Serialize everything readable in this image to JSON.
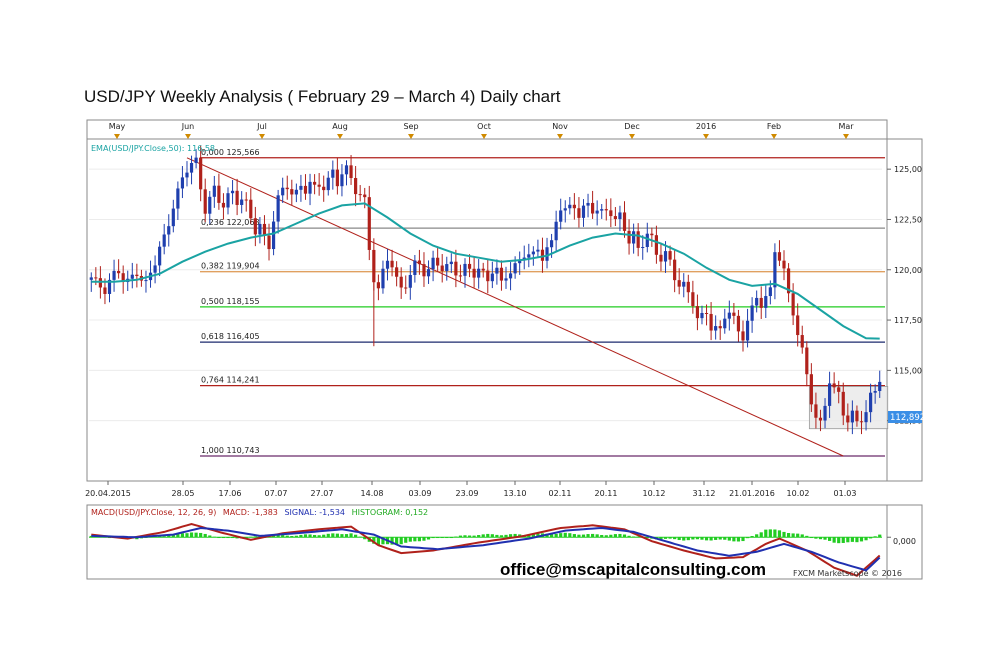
{
  "title": "USD/JPY Weekly Analysis ( February 29 – March 4) Daily chart",
  "email": "office@mscapitalconsulting.com",
  "credit": "FXCM Marketscope © 2016",
  "colors": {
    "bull": "#1f3fae",
    "bear": "#b0211b",
    "ema": "#1aa3a3",
    "macd": "#b0211b",
    "signal": "#2030b0",
    "histogram": "#22cc22",
    "month_marker": "#d08a00"
  },
  "chart_data": [
    {
      "type": "candlestick",
      "ylim": [
        109.6,
        126.4
      ],
      "yticks": [
        "125,00",
        "122,50",
        "120,00",
        "117,50",
        "115,00",
        "112,50"
      ],
      "month_labels": [
        "May",
        "Jun",
        "Jul",
        "Aug",
        "Sep",
        "Oct",
        "Nov",
        "Dec",
        "2016",
        "Feb",
        "Mar"
      ],
      "date_labels": [
        "20.04.2015",
        "28.05",
        "17.06",
        "07.07",
        "27.07",
        "14.08",
        "03.09",
        "23.09",
        "13.10",
        "02.11",
        "20.11",
        "10.12",
        "31.12",
        "21.01.2016",
        "10.02",
        "01.03"
      ],
      "ema_label": "EMA(USD/JPY.Close,50): 116,58",
      "current_price": "112,892",
      "fib_levels": [
        {
          "label": "0,000 125,566",
          "value": 125.566,
          "color": "#b0211b"
        },
        {
          "label": "0,236 122,068",
          "value": 122.068,
          "color": "#888888"
        },
        {
          "label": "0,382 119,904",
          "value": 119.904,
          "color": "#e0a060"
        },
        {
          "label": "0,500 118,155",
          "value": 118.155,
          "color": "#22cc22"
        },
        {
          "label": "0,618 116,405",
          "value": 116.405,
          "color": "#1c2a6e"
        },
        {
          "label": "0,764 114,241",
          "value": 114.241,
          "color": "#b0211b"
        },
        {
          "label": "1,000 110,743",
          "value": 110.743,
          "color": "#6a2a6a"
        }
      ],
      "close_path": [
        [
          0,
          119.5
        ],
        [
          1,
          119.3
        ],
        [
          2,
          119.2
        ],
        [
          3,
          119.1
        ],
        [
          4,
          119.5
        ],
        [
          5,
          119.8
        ],
        [
          6,
          119.9
        ],
        [
          7,
          119.4
        ],
        [
          8,
          119.3
        ],
        [
          9,
          119.7
        ],
        [
          10,
          120.0
        ],
        [
          11,
          119.6
        ],
        [
          12,
          119.3
        ],
        [
          13,
          119.8
        ],
        [
          14,
          120.3
        ],
        [
          15,
          121.0
        ],
        [
          16,
          121.6
        ],
        [
          17,
          122.4
        ],
        [
          18,
          123.3
        ],
        [
          19,
          123.9
        ],
        [
          20,
          124.4
        ],
        [
          21,
          124.9
        ],
        [
          22,
          125.3
        ],
        [
          23,
          125.4
        ],
        [
          24,
          124.1
        ],
        [
          25,
          123.1
        ],
        [
          26,
          123.6
        ],
        [
          27,
          123.9
        ],
        [
          28,
          123.3
        ],
        [
          29,
          123.2
        ],
        [
          30,
          123.7
        ],
        [
          31,
          123.9
        ],
        [
          32,
          123.5
        ],
        [
          33,
          123.6
        ],
        [
          34,
          123.2
        ],
        [
          35,
          122.4
        ],
        [
          36,
          121.9
        ],
        [
          37,
          122.3
        ],
        [
          38,
          121.6
        ],
        [
          39,
          121.2
        ],
        [
          40,
          122.6
        ],
        [
          41,
          123.5
        ],
        [
          42,
          123.8
        ],
        [
          43,
          124.1
        ],
        [
          44,
          123.9
        ],
        [
          45,
          123.9
        ],
        [
          46,
          124.2
        ],
        [
          47,
          124.0
        ],
        [
          48,
          124.3
        ],
        [
          49,
          123.9
        ],
        [
          50,
          124.1
        ],
        [
          51,
          124.2
        ],
        [
          52,
          124.6
        ],
        [
          53,
          124.9
        ],
        [
          54,
          124.3
        ],
        [
          55,
          124.8
        ],
        [
          56,
          124.9
        ],
        [
          57,
          124.4
        ],
        [
          58,
          124.0
        ],
        [
          59,
          123.9
        ],
        [
          60,
          123.5
        ],
        [
          61,
          121.0
        ],
        [
          62,
          119.5
        ],
        [
          63,
          118.9
        ],
        [
          64,
          119.8
        ],
        [
          65,
          120.6
        ],
        [
          66,
          120.4
        ],
        [
          67,
          119.6
        ],
        [
          68,
          119.0
        ],
        [
          69,
          119.2
        ],
        [
          70,
          119.7
        ],
        [
          71,
          120.2
        ],
        [
          72,
          120.3
        ],
        [
          73,
          120.0
        ],
        [
          74,
          120.1
        ],
        [
          75,
          120.4
        ],
        [
          76,
          120.2
        ],
        [
          77,
          120.0
        ],
        [
          78,
          120.1
        ],
        [
          79,
          120.3
        ],
        [
          80,
          120.0
        ],
        [
          81,
          119.9
        ],
        [
          82,
          120.1
        ],
        [
          83,
          119.9
        ],
        [
          84,
          119.7
        ],
        [
          85,
          120.0
        ],
        [
          86,
          119.8
        ],
        [
          87,
          119.6
        ],
        [
          88,
          120.1
        ],
        [
          89,
          120.0
        ],
        [
          90,
          119.2
        ],
        [
          91,
          119.6
        ],
        [
          92,
          119.9
        ],
        [
          93,
          120.2
        ],
        [
          94,
          120.5
        ],
        [
          95,
          120.9
        ],
        [
          96,
          120.8
        ],
        [
          97,
          120.6
        ],
        [
          98,
          120.9
        ],
        [
          99,
          120.6
        ],
        [
          100,
          121.1
        ],
        [
          101,
          121.4
        ],
        [
          102,
          122.6
        ],
        [
          103,
          123.1
        ],
        [
          104,
          122.8
        ],
        [
          105,
          123.0
        ],
        [
          106,
          123.2
        ],
        [
          107,
          122.7
        ],
        [
          108,
          123.1
        ],
        [
          109,
          123.4
        ],
        [
          110,
          123.0
        ],
        [
          111,
          122.8
        ],
        [
          112,
          122.7
        ],
        [
          113,
          123.0
        ],
        [
          114,
          122.9
        ],
        [
          115,
          122.5
        ],
        [
          116,
          122.8
        ],
        [
          117,
          122.1
        ],
        [
          118,
          121.3
        ],
        [
          119,
          121.6
        ],
        [
          120,
          121.0
        ],
        [
          121,
          121.4
        ],
        [
          122,
          121.9
        ],
        [
          123,
          121.6
        ],
        [
          124,
          120.8
        ],
        [
          125,
          120.5
        ],
        [
          126,
          120.7
        ],
        [
          127,
          120.3
        ],
        [
          128,
          119.7
        ],
        [
          129,
          119.4
        ],
        [
          130,
          119.3
        ],
        [
          131,
          118.8
        ],
        [
          132,
          118.3
        ],
        [
          133,
          117.5
        ],
        [
          134,
          117.6
        ],
        [
          135,
          117.9
        ],
        [
          136,
          117.3
        ],
        [
          137,
          117.2
        ],
        [
          138,
          116.9
        ],
        [
          139,
          117.6
        ],
        [
          140,
          117.9
        ],
        [
          141,
          117.5
        ],
        [
          142,
          116.9
        ],
        [
          143,
          116.8
        ],
        [
          144,
          117.6
        ],
        [
          145,
          118.0
        ],
        [
          146,
          118.5
        ],
        [
          147,
          118.2
        ],
        [
          148,
          118.6
        ],
        [
          149,
          119.0
        ],
        [
          150,
          121.1
        ],
        [
          151,
          120.7
        ],
        [
          152,
          119.9
        ],
        [
          153,
          118.6
        ],
        [
          154,
          117.8
        ],
        [
          155,
          116.8
        ],
        [
          156,
          116.0
        ],
        [
          157,
          114.9
        ],
        [
          158,
          113.6
        ],
        [
          159,
          112.6
        ],
        [
          160,
          112.2
        ],
        [
          161,
          113.2
        ],
        [
          162,
          114.5
        ],
        [
          163,
          114.1
        ],
        [
          164,
          113.9
        ],
        [
          165,
          113.0
        ],
        [
          166,
          112.5
        ],
        [
          167,
          112.7
        ],
        [
          168,
          112.3
        ],
        [
          169,
          112.6
        ],
        [
          170,
          113.0
        ],
        [
          171,
          113.8
        ],
        [
          172,
          114.1
        ],
        [
          173,
          114.6
        ]
      ],
      "ema_path": [
        [
          0,
          119.4
        ],
        [
          5,
          119.4
        ],
        [
          10,
          119.5
        ],
        [
          15,
          119.8
        ],
        [
          20,
          120.4
        ],
        [
          25,
          120.9
        ],
        [
          30,
          121.3
        ],
        [
          35,
          121.6
        ],
        [
          40,
          121.8
        ],
        [
          45,
          122.3
        ],
        [
          50,
          122.8
        ],
        [
          55,
          123.2
        ],
        [
          60,
          123.3
        ],
        [
          65,
          122.6
        ],
        [
          70,
          121.8
        ],
        [
          75,
          121.2
        ],
        [
          80,
          120.8
        ],
        [
          85,
          120.6
        ],
        [
          90,
          120.4
        ],
        [
          95,
          120.5
        ],
        [
          100,
          120.7
        ],
        [
          105,
          121.2
        ],
        [
          110,
          121.6
        ],
        [
          115,
          121.8
        ],
        [
          120,
          121.7
        ],
        [
          125,
          121.3
        ],
        [
          130,
          120.8
        ],
        [
          135,
          120.1
        ],
        [
          140,
          119.5
        ],
        [
          145,
          119.2
        ],
        [
          150,
          119.3
        ],
        [
          155,
          118.8
        ],
        [
          160,
          118.0
        ],
        [
          165,
          117.2
        ],
        [
          170,
          116.6
        ],
        [
          173,
          116.58
        ]
      ],
      "swing_line": {
        "from": [
          21,
          125.566
        ],
        "to": [
          165,
          110.743
        ]
      }
    },
    {
      "type": "line",
      "name": "MACD panel",
      "legend_parts": [
        "MACD(USD/JPY.Close, 12, 26, 9)",
        "MACD: -1,383",
        "SIGNAL: -1,534",
        "HISTOGRAM: 0,152"
      ],
      "ylim": [
        -3.0,
        1.3
      ],
      "ytick": "0,000",
      "series": [
        {
          "name": "MACD",
          "values": [
            [
              0,
              0.2
            ],
            [
              8,
              -0.1
            ],
            [
              16,
              0.4
            ],
            [
              22,
              1.0
            ],
            [
              28,
              0.4
            ],
            [
              35,
              -0.2
            ],
            [
              42,
              0.3
            ],
            [
              50,
              0.6
            ],
            [
              57,
              0.8
            ],
            [
              63,
              -0.6
            ],
            [
              68,
              -1.2
            ],
            [
              75,
              -1.0
            ],
            [
              85,
              -0.4
            ],
            [
              95,
              0.1
            ],
            [
              103,
              0.7
            ],
            [
              110,
              0.9
            ],
            [
              117,
              0.6
            ],
            [
              123,
              -0.3
            ],
            [
              130,
              -1.0
            ],
            [
              137,
              -1.6
            ],
            [
              143,
              -1.5
            ],
            [
              148,
              -0.5
            ],
            [
              151,
              -0.1
            ],
            [
              157,
              -1.0
            ],
            [
              163,
              -2.3
            ],
            [
              168,
              -2.9
            ],
            [
              173,
              -1.38
            ]
          ]
        },
        {
          "name": "SIGNAL",
          "values": [
            [
              0,
              0.1
            ],
            [
              10,
              0.0
            ],
            [
              18,
              0.2
            ],
            [
              24,
              0.7
            ],
            [
              30,
              0.5
            ],
            [
              37,
              0.1
            ],
            [
              45,
              0.3
            ],
            [
              55,
              0.6
            ],
            [
              62,
              0.2
            ],
            [
              68,
              -0.7
            ],
            [
              76,
              -0.9
            ],
            [
              86,
              -0.6
            ],
            [
              96,
              -0.1
            ],
            [
              104,
              0.5
            ],
            [
              112,
              0.7
            ],
            [
              119,
              0.4
            ],
            [
              126,
              -0.3
            ],
            [
              133,
              -1.0
            ],
            [
              140,
              -1.4
            ],
            [
              146,
              -1.1
            ],
            [
              152,
              -0.5
            ],
            [
              158,
              -1.1
            ],
            [
              164,
              -1.9
            ],
            [
              170,
              -2.5
            ],
            [
              173,
              -1.53
            ]
          ]
        },
        {
          "name": "HISTOGRAM",
          "values": [
            [
              0,
              0.1
            ],
            [
              10,
              -0.1
            ],
            [
              18,
              0.2
            ],
            [
              22,
              0.4
            ],
            [
              30,
              -0.1
            ],
            [
              40,
              0.1
            ],
            [
              50,
              0.2
            ],
            [
              57,
              0.3
            ],
            [
              63,
              -0.6
            ],
            [
              68,
              -0.5
            ],
            [
              75,
              -0.1
            ],
            [
              85,
              0.2
            ],
            [
              95,
              0.2
            ],
            [
              103,
              0.3
            ],
            [
              110,
              0.2
            ],
            [
              117,
              0.2
            ],
            [
              123,
              -0.1
            ],
            [
              130,
              -0.2
            ],
            [
              137,
              -0.2
            ],
            [
              143,
              -0.3
            ],
            [
              148,
              0.6
            ],
            [
              151,
              0.5
            ],
            [
              157,
              0.1
            ],
            [
              163,
              -0.4
            ],
            [
              168,
              -0.4
            ],
            [
              173,
              0.15
            ]
          ]
        }
      ]
    }
  ]
}
